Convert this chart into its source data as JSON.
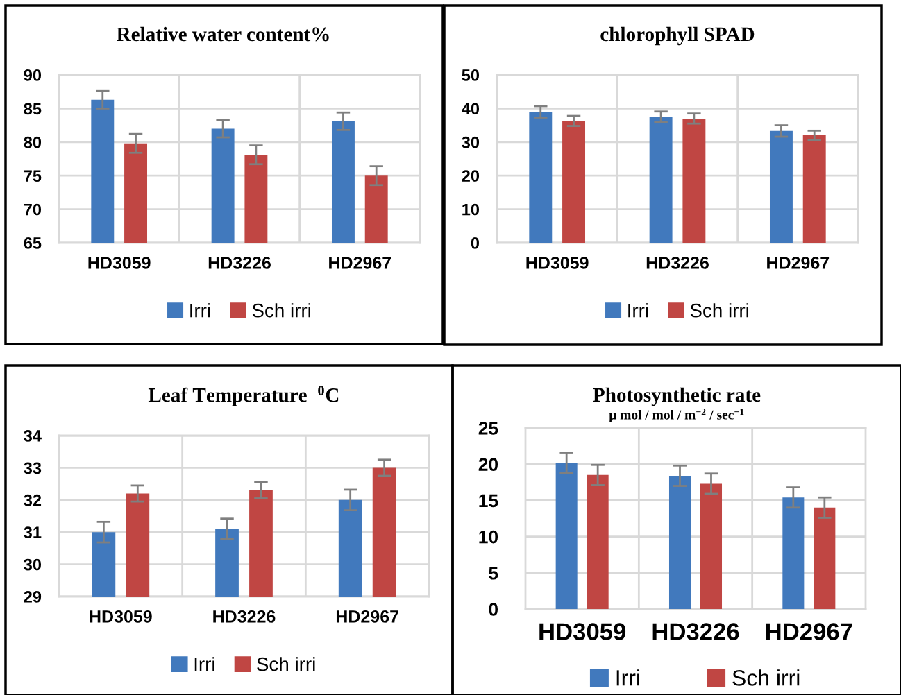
{
  "chart_data": [
    {
      "type": "bar",
      "title": "Relative water content%",
      "categories": [
        "HD3059",
        "HD3226",
        "HD2967"
      ],
      "ylim": [
        65,
        90
      ],
      "yticks": [
        65,
        70,
        75,
        80,
        85,
        90
      ],
      "grid": true,
      "legend": "bottom",
      "series": [
        {
          "name": "Irri",
          "color": "#4179bd",
          "values": [
            86.3,
            82.0,
            83.1
          ],
          "errors": [
            1.3,
            1.3,
            1.3
          ]
        },
        {
          "name": "Sch irri",
          "color": "#c04643",
          "values": [
            79.8,
            78.1,
            75.0
          ],
          "errors": [
            1.4,
            1.4,
            1.4
          ]
        }
      ]
    },
    {
      "type": "bar",
      "title": "chlorophyll SPAD",
      "categories": [
        "HD3059",
        "HD3226",
        "HD2967"
      ],
      "ylim": [
        0,
        50
      ],
      "yticks": [
        0,
        10,
        20,
        30,
        40,
        50
      ],
      "grid": true,
      "legend": "bottom",
      "series": [
        {
          "name": "Irri",
          "color": "#4179bd",
          "values": [
            39.0,
            37.5,
            33.3
          ],
          "errors": [
            1.7,
            1.6,
            1.7
          ]
        },
        {
          "name": "Sch irri",
          "color": "#c04643",
          "values": [
            36.3,
            37.0,
            32.0
          ],
          "errors": [
            1.5,
            1.5,
            1.4
          ]
        }
      ]
    },
    {
      "type": "bar",
      "title": "Leaf Temperature  $^{0}$C",
      "categories": [
        "HD3059",
        "HD3226",
        "HD2967"
      ],
      "ylim": [
        29,
        34
      ],
      "yticks": [
        29,
        30,
        31,
        32,
        33,
        34
      ],
      "grid": true,
      "legend": "bottom",
      "series": [
        {
          "name": "Irri",
          "color": "#4179bd",
          "values": [
            31.0,
            31.1,
            32.0
          ],
          "errors": [
            0.32,
            0.32,
            0.32
          ]
        },
        {
          "name": "Sch irri",
          "color": "#c04643",
          "values": [
            32.2,
            32.3,
            33.0
          ],
          "errors": [
            0.25,
            0.25,
            0.25
          ]
        }
      ]
    },
    {
      "type": "bar",
      "title": "Photosynthetic rate",
      "subtitle": "μ mol / mol / m$^{−2}$ / sec$^{−1}$",
      "categories": [
        "HD3059",
        "HD3226",
        "HD2967"
      ],
      "ylim": [
        0,
        25
      ],
      "yticks": [
        0,
        5,
        10,
        15,
        20,
        25
      ],
      "grid": true,
      "legend": "bottom",
      "series": [
        {
          "name": "Irri",
          "color": "#4179bd",
          "values": [
            20.2,
            18.4,
            15.4
          ],
          "errors": [
            1.4,
            1.4,
            1.4
          ]
        },
        {
          "name": "Sch irri",
          "color": "#c04643",
          "values": [
            18.5,
            17.3,
            14.0
          ],
          "errors": [
            1.4,
            1.4,
            1.4
          ]
        }
      ]
    }
  ]
}
